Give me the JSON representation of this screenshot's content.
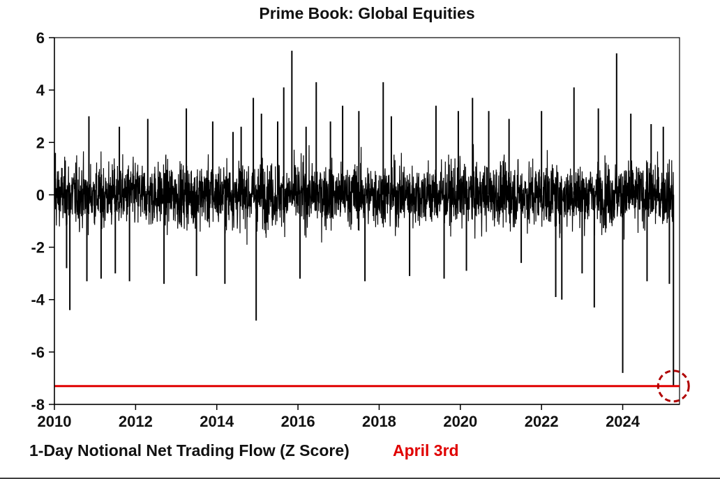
{
  "chart_data": {
    "type": "line",
    "title": "Prime Book: Global Equities",
    "xlabel": "",
    "ylabel": "",
    "xlim": [
      2010,
      2025.4
    ],
    "ylim": [
      -8,
      6
    ],
    "x_ticks": [
      "2010",
      "2012",
      "2014",
      "2016",
      "2018",
      "2020",
      "2022",
      "2024"
    ],
    "y_ticks": [
      "6",
      "4",
      "2",
      "0",
      "-2",
      "-4",
      "-6",
      "-8"
    ],
    "grid": false,
    "legend_position": "bottom-left",
    "series": [
      {
        "name": "1-Day Notional Net Trading Flow (Z Score)",
        "color": "#000000",
        "description_band": {
          "typical_min": -2.0,
          "typical_max": 2.0
        },
        "spikes": [
          {
            "x": 2010.02,
            "y": 1.6
          },
          {
            "x": 2010.3,
            "y": -2.8
          },
          {
            "x": 2010.38,
            "y": -4.4
          },
          {
            "x": 2010.85,
            "y": 3.0
          },
          {
            "x": 2010.8,
            "y": -3.3
          },
          {
            "x": 2011.15,
            "y": -3.2
          },
          {
            "x": 2011.6,
            "y": 2.6
          },
          {
            "x": 2011.5,
            "y": -3.0
          },
          {
            "x": 2011.85,
            "y": -3.3
          },
          {
            "x": 2012.3,
            "y": 2.9
          },
          {
            "x": 2012.7,
            "y": -3.4
          },
          {
            "x": 2013.25,
            "y": 3.3
          },
          {
            "x": 2013.5,
            "y": -3.1
          },
          {
            "x": 2013.9,
            "y": 2.8
          },
          {
            "x": 2014.2,
            "y": -3.4
          },
          {
            "x": 2014.4,
            "y": 2.4
          },
          {
            "x": 2014.6,
            "y": 2.6
          },
          {
            "x": 2014.9,
            "y": 3.7
          },
          {
            "x": 2014.97,
            "y": -4.8
          },
          {
            "x": 2015.1,
            "y": 3.1
          },
          {
            "x": 2015.5,
            "y": 2.8
          },
          {
            "x": 2015.65,
            "y": 4.1
          },
          {
            "x": 2015.85,
            "y": 5.5
          },
          {
            "x": 2016.05,
            "y": -3.2
          },
          {
            "x": 2016.2,
            "y": 2.6
          },
          {
            "x": 2016.45,
            "y": 4.3
          },
          {
            "x": 2016.8,
            "y": 2.8
          },
          {
            "x": 2017.1,
            "y": 3.4
          },
          {
            "x": 2017.5,
            "y": 3.2
          },
          {
            "x": 2017.65,
            "y": -3.3
          },
          {
            "x": 2018.1,
            "y": 4.3
          },
          {
            "x": 2018.3,
            "y": 3.0
          },
          {
            "x": 2018.75,
            "y": -3.1
          },
          {
            "x": 2019.4,
            "y": 3.4
          },
          {
            "x": 2019.6,
            "y": -3.2
          },
          {
            "x": 2019.95,
            "y": 3.2
          },
          {
            "x": 2020.3,
            "y": 3.7
          },
          {
            "x": 2020.15,
            "y": -2.9
          },
          {
            "x": 2020.7,
            "y": 3.2
          },
          {
            "x": 2021.2,
            "y": 2.9
          },
          {
            "x": 2021.5,
            "y": -2.6
          },
          {
            "x": 2022.0,
            "y": 3.2
          },
          {
            "x": 2022.35,
            "y": -3.9
          },
          {
            "x": 2022.5,
            "y": -4.0
          },
          {
            "x": 2022.8,
            "y": 4.1
          },
          {
            "x": 2023.0,
            "y": -3.0
          },
          {
            "x": 2023.3,
            "y": -4.3
          },
          {
            "x": 2023.4,
            "y": 3.3
          },
          {
            "x": 2023.85,
            "y": 5.4
          },
          {
            "x": 2024.0,
            "y": -6.8
          },
          {
            "x": 2024.2,
            "y": 3.1
          },
          {
            "x": 2024.6,
            "y": -3.3
          },
          {
            "x": 2024.7,
            "y": 2.7
          },
          {
            "x": 2025.0,
            "y": 2.6
          },
          {
            "x": 2025.15,
            "y": -3.4
          },
          {
            "x": 2025.25,
            "y": -7.3
          }
        ]
      }
    ],
    "reference_line": {
      "y": -7.3,
      "color": "#e00000"
    },
    "annotation": {
      "label": "April 3rd",
      "x": 2025.25,
      "y": -7.3,
      "color": "#e00000"
    }
  }
}
